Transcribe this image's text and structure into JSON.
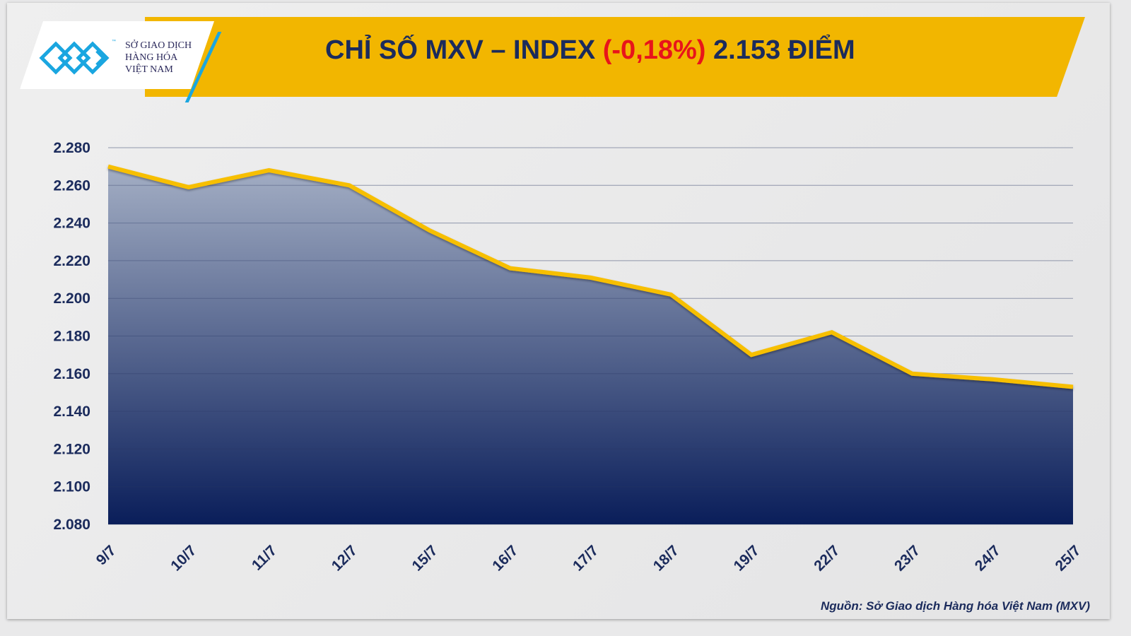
{
  "header": {
    "logo_text": [
      "SỞ GIAO DỊCH",
      "HÀNG HÓA",
      "VIỆT NAM"
    ],
    "logo_tm": "™"
  },
  "title": {
    "prefix": "CHỈ SỐ MXV – INDEX ",
    "change": "(-0,18%)",
    "suffix": " 2.153 ĐIỂM"
  },
  "source": "Nguồn: Sở Giao dịch Hàng hóa Việt Nam (MXV)",
  "colors": {
    "line": "#f7bf00",
    "fill_top": "#a3aec4",
    "fill_bottom": "#0a1e5a",
    "banner": "#f2b600",
    "title": "#1b2b5c",
    "negative": "#e8141a"
  },
  "chart_data": {
    "type": "area",
    "title": "CHỈ SỐ MXV – INDEX (-0,18%) 2.153 ĐIỂM",
    "xlabel": "",
    "ylabel": "",
    "categories": [
      "9/7",
      "10/7",
      "11/7",
      "12/7",
      "15/7",
      "16/7",
      "17/7",
      "18/7",
      "19/7",
      "22/7",
      "23/7",
      "24/7",
      "25/7"
    ],
    "values": [
      2270,
      2259,
      2268,
      2260,
      2236,
      2216,
      2211,
      2202,
      2170,
      2182,
      2160,
      2157,
      2153
    ],
    "ylim": [
      2080,
      2280
    ],
    "yticks": [
      2080,
      2100,
      2120,
      2140,
      2160,
      2180,
      2200,
      2220,
      2240,
      2260,
      2280
    ],
    "ytick_labels": [
      "2.080",
      "2.100",
      "2.120",
      "2.140",
      "2.160",
      "2.180",
      "2.200",
      "2.220",
      "2.240",
      "2.260",
      "2.280"
    ],
    "grid": true,
    "legend": "none"
  }
}
